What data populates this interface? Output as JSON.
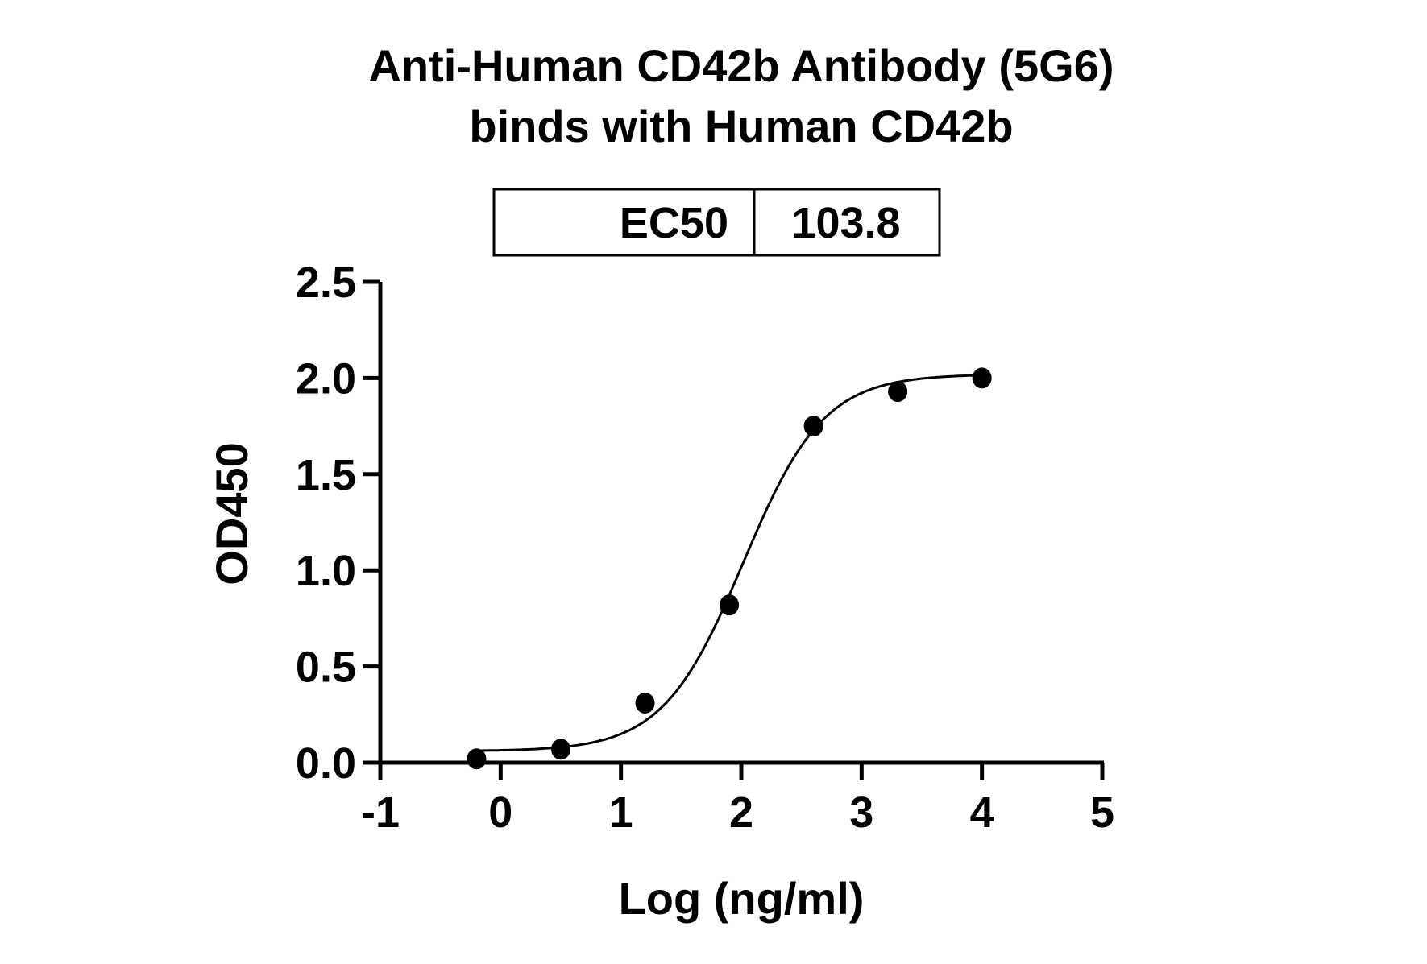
{
  "chart_data": {
    "type": "scatter",
    "title_lines": [
      "Anti-Human CD42b Antibody (5G6)",
      "binds with Human CD42b"
    ],
    "xlabel": "Log (ng/ml)",
    "ylabel": "OD450",
    "xlim": [
      -1,
      5
    ],
    "ylim": [
      0,
      2.5
    ],
    "xticks": [
      "-1",
      "0",
      "1",
      "2",
      "3",
      "4",
      "5"
    ],
    "yticks": [
      "0.0",
      "0.5",
      "1.0",
      "1.5",
      "2.0",
      "2.5"
    ],
    "grid": false,
    "points": {
      "x": [
        -0.2,
        0.5,
        1.2,
        1.9,
        2.6,
        3.3,
        4.0
      ],
      "y": [
        0.02,
        0.07,
        0.31,
        0.82,
        1.75,
        1.93,
        2.0
      ]
    },
    "fit": {
      "model": "4PL",
      "bottom": 0.06,
      "top": 2.02,
      "logEC50": 2.016,
      "hill": 1.3,
      "x_range": [
        -0.2,
        4.0
      ]
    },
    "table": {
      "label": "EC50",
      "value": "103.8"
    }
  }
}
